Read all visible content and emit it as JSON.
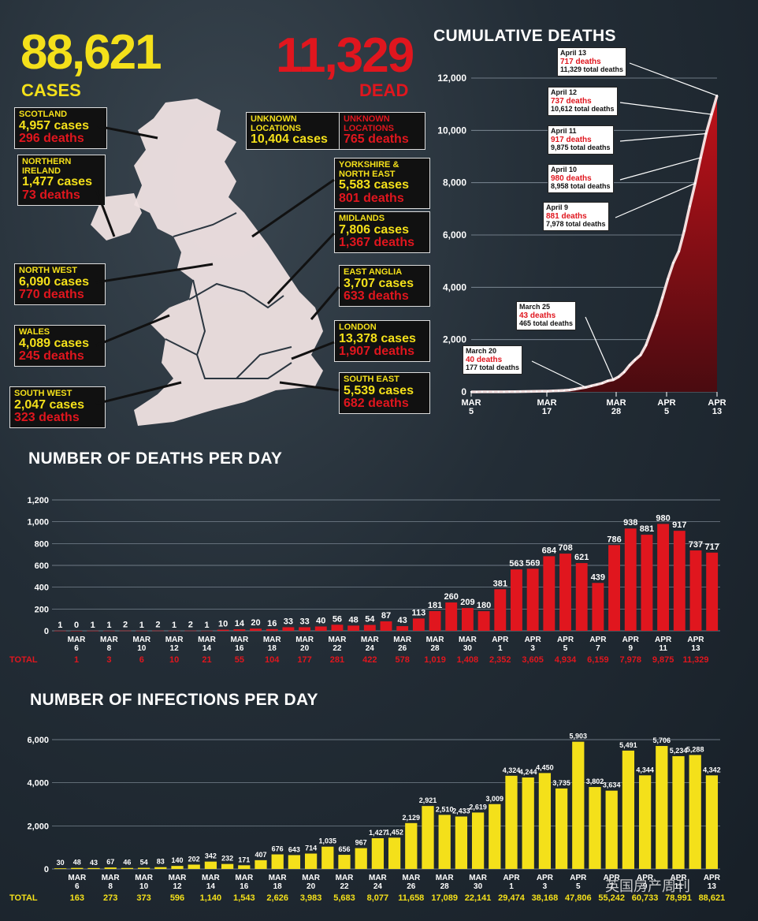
{
  "header": {
    "cases_total": "88,621",
    "cases_label": "CASES",
    "dead_total": "11,329",
    "dead_label": "DEAD"
  },
  "regions": [
    {
      "name": "SCOTLAND",
      "cases": "4,957 cases",
      "deaths": "296 deaths"
    },
    {
      "name": "NORTHERN IRELAND",
      "cases": "1,477 cases",
      "deaths": "73 deaths"
    },
    {
      "name": "NORTH WEST",
      "cases": "6,090 cases",
      "deaths": "770 deaths"
    },
    {
      "name": "WALES",
      "cases": "4,089 cases",
      "deaths": "245 deaths"
    },
    {
      "name": "SOUTH WEST",
      "cases": "2,047 cases",
      "deaths": "323 deaths"
    },
    {
      "name": "YORKSHIRE & NORTH EAST",
      "cases": "5,583 cases",
      "deaths": "801 deaths"
    },
    {
      "name": "MIDLANDS",
      "cases": "7,806 cases",
      "deaths": "1,367 deaths"
    },
    {
      "name": "EAST ANGLIA",
      "cases": "3,707 cases",
      "deaths": "633 deaths"
    },
    {
      "name": "LONDON",
      "cases": "13,378 cases",
      "deaths": "1,907 deaths"
    },
    {
      "name": "SOUTH EAST",
      "cases": "5,539 cases",
      "deaths": "682 deaths"
    }
  ],
  "unknown_cases": {
    "name": "UNKNOWN LOCATIONS",
    "value": "10,404 cases"
  },
  "unknown_deaths": {
    "name": "UNKNOWN LOCATIONS",
    "value": "765 deaths"
  },
  "callouts": [
    {
      "date": "April 13",
      "deaths": "717 deaths",
      "total": "11,329 total deaths"
    },
    {
      "date": "April 12",
      "deaths": "737 deaths",
      "total": "10,612 total deaths"
    },
    {
      "date": "April 11",
      "deaths": "917 deaths",
      "total": "9,875 total deaths"
    },
    {
      "date": "April 10",
      "deaths": "980 deaths",
      "total": "8,958 total deaths"
    },
    {
      "date": "April 9",
      "deaths": "881 deaths",
      "total": "7,978 total deaths"
    },
    {
      "date": "March 25",
      "deaths": "43 deaths",
      "total": "465 total deaths"
    },
    {
      "date": "March 20",
      "deaths": "40 deaths",
      "total": "177 total deaths"
    }
  ],
  "colors": {
    "yellow": "#f4e01a",
    "red": "#e0161e",
    "dark": "#1c252e"
  },
  "chart_data": [
    {
      "type": "area",
      "title": "CUMULATIVE DEATHS",
      "x_ticks": [
        [
          "MAR",
          "5"
        ],
        [
          "MAR",
          "17"
        ],
        [
          "MAR",
          "28"
        ],
        [
          "APR",
          "5"
        ],
        [
          "APR",
          "13"
        ]
      ],
      "x_tick_index": [
        0,
        12,
        23,
        31,
        39
      ],
      "ylim": [
        0,
        12000
      ],
      "y_ticks": [
        0,
        2000,
        4000,
        6000,
        8000,
        10000,
        12000
      ],
      "y_tick_labels": [
        "0",
        "2,000",
        "4,000",
        "6,000",
        "8,000",
        "10,000",
        "12,000"
      ],
      "values": [
        1,
        1,
        2,
        2,
        3,
        4,
        5,
        7,
        9,
        11,
        14,
        17,
        22,
        25,
        28,
        36,
        45,
        56,
        72,
        104,
        144,
        177,
        233,
        281,
        335,
        422,
        465,
        578,
        759,
        1019,
        1228,
        1408,
        1789,
        2352,
        2921,
        3605,
        4313,
        4934,
        5373,
        6159,
        7097,
        7978,
        8958,
        9875,
        10612,
        11329
      ]
    },
    {
      "type": "bar",
      "title": "NUMBER OF DEATHS PER DAY",
      "values": [
        1,
        0,
        1,
        1,
        2,
        1,
        2,
        1,
        2,
        1,
        10,
        14,
        20,
        16,
        33,
        33,
        40,
        56,
        48,
        54,
        87,
        43,
        113,
        181,
        260,
        209,
        180,
        381,
        563,
        569,
        684,
        708,
        621,
        439,
        786,
        938,
        881,
        980,
        917,
        737,
        717
      ],
      "value_labels": [
        "1",
        "0",
        "1",
        "1",
        "2",
        "1",
        "2",
        "1",
        "2",
        "1",
        "10",
        "14",
        "20",
        "16",
        "33",
        "33",
        "40",
        "56",
        "48",
        "54",
        "87",
        "43",
        "113",
        "181",
        "260",
        "209",
        "180",
        "381",
        "563",
        "569",
        "684",
        "708",
        "621",
        "439",
        "786",
        "938",
        "881",
        "980",
        "917",
        "737",
        "717"
      ],
      "x_ticks": [
        [
          "MAR",
          "6"
        ],
        [
          "MAR",
          "8"
        ],
        [
          "MAR",
          "10"
        ],
        [
          "MAR",
          "12"
        ],
        [
          "MAR",
          "14"
        ],
        [
          "MAR",
          "16"
        ],
        [
          "MAR",
          "18"
        ],
        [
          "MAR",
          "20"
        ],
        [
          "MAR",
          "22"
        ],
        [
          "MAR",
          "24"
        ],
        [
          "MAR",
          "26"
        ],
        [
          "MAR",
          "28"
        ],
        [
          "MAR",
          "30"
        ],
        [
          "APR",
          "1"
        ],
        [
          "APR",
          "3"
        ],
        [
          "APR",
          "5"
        ],
        [
          "APR",
          "7"
        ],
        [
          "APR",
          "9"
        ],
        [
          "APR",
          "11"
        ],
        [
          "APR",
          "13"
        ]
      ],
      "total_label": "TOTAL",
      "totals": [
        "1",
        "3",
        "6",
        "10",
        "21",
        "55",
        "104",
        "177",
        "281",
        "422",
        "578",
        "1,019",
        "1,408",
        "2,352",
        "3,605",
        "4,934",
        "6,159",
        "7,978",
        "9,875",
        "11,329"
      ],
      "ylim": [
        0,
        1200
      ],
      "y_ticks": [
        0,
        200,
        400,
        600,
        800,
        1000,
        1200
      ],
      "y_tick_labels": [
        "0",
        "200",
        "400",
        "600",
        "800",
        "1,000",
        "1,200"
      ]
    },
    {
      "type": "bar",
      "title": "NUMBER OF INFECTIONS PER DAY",
      "values": [
        30,
        48,
        43,
        67,
        46,
        54,
        83,
        140,
        202,
        342,
        232,
        171,
        407,
        676,
        643,
        714,
        1035,
        656,
        967,
        1427,
        1452,
        2129,
        2921,
        2510,
        2433,
        2619,
        3009,
        4324,
        4244,
        4450,
        3735,
        5903,
        3802,
        3634,
        5491,
        4344,
        5706,
        5234,
        5288,
        4342
      ],
      "value_labels": [
        "30",
        "48",
        "43",
        "67",
        "46",
        "54",
        "83",
        "140",
        "202",
        "342",
        "232",
        "171",
        "407",
        "676",
        "643",
        "714",
        "1,035",
        "656",
        "967",
        "1,427",
        "1,452",
        "2,129",
        "2,921",
        "2,510",
        "2,433",
        "2,619",
        "3,009",
        "4,324",
        "4,244",
        "4,450",
        "3,735",
        "5,903",
        "3,802",
        "3,634",
        "5,491",
        "4,344",
        "5,706",
        "5,234",
        "5,288",
        "4,342"
      ],
      "x_ticks": [
        [
          "MAR",
          "6"
        ],
        [
          "MAR",
          "8"
        ],
        [
          "MAR",
          "10"
        ],
        [
          "MAR",
          "12"
        ],
        [
          "MAR",
          "14"
        ],
        [
          "MAR",
          "16"
        ],
        [
          "MAR",
          "18"
        ],
        [
          "MAR",
          "20"
        ],
        [
          "MAR",
          "22"
        ],
        [
          "MAR",
          "24"
        ],
        [
          "MAR",
          "26"
        ],
        [
          "MAR",
          "28"
        ],
        [
          "MAR",
          "30"
        ],
        [
          "APR",
          "1"
        ],
        [
          "APR",
          "3"
        ],
        [
          "APR",
          "5"
        ],
        [
          "APR",
          "7"
        ],
        [
          "APR",
          "9"
        ],
        [
          "APR",
          "11"
        ],
        [
          "APR",
          "13"
        ]
      ],
      "total_label": "TOTAL",
      "totals": [
        "163",
        "273",
        "373",
        "596",
        "1,140",
        "1,543",
        "2,626",
        "3,983",
        "5,683",
        "8,077",
        "11,658",
        "17,089",
        "22,141",
        "29,474",
        "38,168",
        "47,806",
        "55,242",
        "60,733",
        "78,991",
        "88,621"
      ],
      "ylim": [
        0,
        6000
      ],
      "y_ticks": [
        0,
        2000,
        4000,
        6000
      ],
      "y_tick_labels": [
        "0",
        "2,000",
        "4,000",
        "6,000"
      ]
    }
  ],
  "watermark": "英国房产周刊"
}
